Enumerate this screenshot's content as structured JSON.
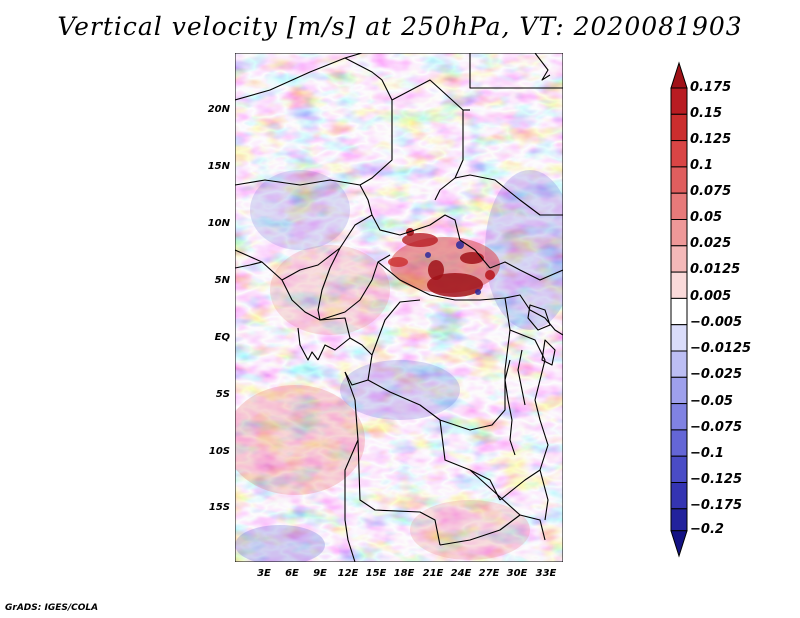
{
  "title": "Vertical velocity [m/s] at 250hPa, VT: 2020081903",
  "footer": "GrADS: IGES/COLA",
  "map": {
    "lon_range": [
      0,
      36
    ],
    "lat_range": [
      -20,
      25
    ],
    "lat_labels": [
      {
        "lat": 20,
        "text": "20N"
      },
      {
        "lat": 15,
        "text": "15N"
      },
      {
        "lat": 10,
        "text": "10N"
      },
      {
        "lat": 5,
        "text": "5N"
      },
      {
        "lat": 0,
        "text": "EQ"
      },
      {
        "lat": -5,
        "text": "5S"
      },
      {
        "lat": -10,
        "text": "10S"
      },
      {
        "lat": -15,
        "text": "15S"
      }
    ],
    "lon_labels": [
      {
        "lon": 3,
        "text": "3E"
      },
      {
        "lon": 6,
        "text": "6E"
      },
      {
        "lon": 9,
        "text": "9E"
      },
      {
        "lon": 12,
        "text": "12E"
      },
      {
        "lon": 15,
        "text": "15E"
      },
      {
        "lon": 18,
        "text": "18E"
      },
      {
        "lon": 21,
        "text": "21E"
      },
      {
        "lon": 24,
        "text": "24E"
      },
      {
        "lon": 27,
        "text": "27E"
      },
      {
        "lon": 30,
        "text": "30E"
      },
      {
        "lon": 33,
        "text": "33E"
      }
    ]
  },
  "colorbar": {
    "levels": [
      "0.175",
      "0.15",
      "0.125",
      "0.1",
      "0.075",
      "0.05",
      "0.025",
      "0.0125",
      "0.005",
      "−0.005",
      "−0.0125",
      "−0.025",
      "−0.05",
      "−0.075",
      "−0.1",
      "−0.125",
      "−0.175",
      "−0.2"
    ],
    "colors": [
      "#a01218",
      "#b81c22",
      "#cb2e2e",
      "#d94545",
      "#e05e5e",
      "#e77a7a",
      "#ee9898",
      "#f4b8b8",
      "#fadada",
      "#ffffff",
      "#dadcfa",
      "#bcbef4",
      "#9ea0ec",
      "#8082e2",
      "#6466d6",
      "#4a4cc6",
      "#3434b2",
      "#22229c",
      "#141284"
    ]
  }
}
